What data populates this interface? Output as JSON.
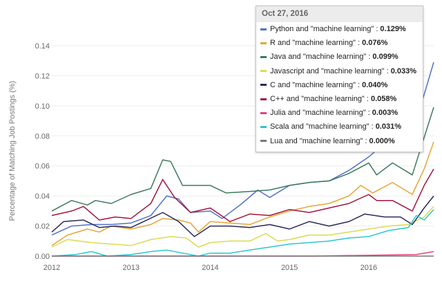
{
  "chart_data": {
    "type": "line",
    "title": "",
    "xlabel": "",
    "ylabel": "Percentage of Matching Job Postings (%)",
    "xlim": [
      2012,
      2016.82
    ],
    "ylim": [
      0,
      0.14
    ],
    "x_ticks": [
      "2012",
      "2013",
      "2014",
      "2015",
      "2016"
    ],
    "y_ticks": [
      "0.00",
      "0.02",
      "0.04",
      "0.06",
      "0.08",
      "0.10",
      "0.12",
      "0.14"
    ],
    "grid": true,
    "tooltip": {
      "date": "Oct 27, 2016",
      "legend_placement": "top-right"
    },
    "series": [
      {
        "name": "Python and \"machine learning\"",
        "value_label": "0.129%",
        "color": "#5271c9",
        "x": [
          2012,
          2012.25,
          2012.5,
          2012.75,
          2013,
          2013.25,
          2013.45,
          2013.6,
          2013.75,
          2014,
          2014.15,
          2014.4,
          2014.6,
          2014.75,
          2015,
          2015.25,
          2015.5,
          2015.75,
          2016,
          2016.2,
          2016.5,
          2016.82
        ],
        "y": [
          0.014,
          0.02,
          0.021,
          0.021,
          0.022,
          0.027,
          0.04,
          0.038,
          0.029,
          0.03,
          0.025,
          0.035,
          0.044,
          0.039,
          0.047,
          0.049,
          0.05,
          0.057,
          0.066,
          0.075,
          0.072,
          0.129
        ]
      },
      {
        "name": "R and \"machine learning\"",
        "value_label": "0.076%",
        "color": "#e6a535",
        "x": [
          2012,
          2012.2,
          2012.45,
          2012.6,
          2012.75,
          2013,
          2013.25,
          2013.4,
          2013.6,
          2013.75,
          2013.85,
          2014,
          2014.25,
          2014.5,
          2014.75,
          2015,
          2015.25,
          2015.5,
          2015.75,
          2015.9,
          2016.05,
          2016.3,
          2016.55,
          2016.7,
          2016.82
        ],
        "y": [
          0.007,
          0.014,
          0.018,
          0.016,
          0.02,
          0.018,
          0.021,
          0.025,
          0.024,
          0.022,
          0.016,
          0.023,
          0.022,
          0.021,
          0.026,
          0.03,
          0.033,
          0.035,
          0.04,
          0.047,
          0.042,
          0.049,
          0.041,
          0.058,
          0.076
        ]
      },
      {
        "name": "Java and \"machine learning\"",
        "value_label": "0.099%",
        "color": "#3d7a5c",
        "x": [
          2012,
          2012.25,
          2012.45,
          2012.55,
          2012.75,
          2013,
          2013.25,
          2013.4,
          2013.5,
          2013.65,
          2014,
          2014.2,
          2014.5,
          2014.75,
          2015,
          2015.25,
          2015.5,
          2015.75,
          2016,
          2016.1,
          2016.3,
          2016.55,
          2016.82
        ],
        "y": [
          0.03,
          0.037,
          0.034,
          0.037,
          0.035,
          0.041,
          0.045,
          0.064,
          0.063,
          0.047,
          0.047,
          0.042,
          0.043,
          0.044,
          0.047,
          0.049,
          0.05,
          0.055,
          0.062,
          0.054,
          0.062,
          0.054,
          0.099
        ]
      },
      {
        "name": "Javascript and \"machine learning\"",
        "value_label": "0.033%",
        "color": "#dada55",
        "x": [
          2012,
          2012.2,
          2012.5,
          2012.75,
          2013,
          2013.25,
          2013.5,
          2013.7,
          2013.85,
          2014,
          2014.25,
          2014.5,
          2014.7,
          2014.85,
          2015,
          2015.25,
          2015.5,
          2015.75,
          2016,
          2016.25,
          2016.5,
          2016.7,
          2016.82
        ],
        "y": [
          0.006,
          0.011,
          0.009,
          0.008,
          0.007,
          0.011,
          0.013,
          0.012,
          0.006,
          0.009,
          0.01,
          0.01,
          0.015,
          0.01,
          0.011,
          0.014,
          0.014,
          0.016,
          0.018,
          0.02,
          0.021,
          0.026,
          0.033
        ]
      },
      {
        "name": "C and \"machine learning\"",
        "value_label": "0.040%",
        "color": "#2c2a5a",
        "x": [
          2012,
          2012.15,
          2012.4,
          2012.6,
          2012.8,
          2013,
          2013.2,
          2013.4,
          2013.6,
          2013.8,
          2014,
          2014.25,
          2014.5,
          2014.75,
          2015,
          2015.25,
          2015.5,
          2015.75,
          2015.95,
          2016.2,
          2016.4,
          2016.55,
          2016.7,
          2016.82
        ],
        "y": [
          0.016,
          0.023,
          0.024,
          0.019,
          0.02,
          0.019,
          0.024,
          0.029,
          0.023,
          0.013,
          0.02,
          0.02,
          0.019,
          0.021,
          0.018,
          0.023,
          0.02,
          0.023,
          0.028,
          0.026,
          0.026,
          0.021,
          0.032,
          0.04
        ]
      },
      {
        "name": "C++ and \"machine learning\"",
        "value_label": "0.058%",
        "color": "#a3153f",
        "x": [
          2012,
          2012.25,
          2012.4,
          2012.6,
          2012.8,
          2013,
          2013.25,
          2013.4,
          2013.55,
          2013.75,
          2014,
          2014.25,
          2014.5,
          2014.75,
          2015,
          2015.25,
          2015.5,
          2015.75,
          2016,
          2016.1,
          2016.3,
          2016.55,
          2016.7,
          2016.82
        ],
        "y": [
          0.027,
          0.03,
          0.033,
          0.024,
          0.026,
          0.025,
          0.035,
          0.051,
          0.039,
          0.029,
          0.032,
          0.023,
          0.028,
          0.027,
          0.031,
          0.029,
          0.032,
          0.035,
          0.041,
          0.037,
          0.037,
          0.03,
          0.047,
          0.058
        ]
      },
      {
        "name": "Julia and \"machine learning\"",
        "value_label": "0.003%",
        "color": "#e0457a",
        "x": [
          2012,
          2015.3,
          2016.6,
          2016.82
        ],
        "y": [
          0.0,
          0.0,
          0.001,
          0.003
        ]
      },
      {
        "name": "Scala and \"machine learning\"",
        "value_label": "0.031%",
        "color": "#2dc5d0",
        "x": [
          2012,
          2012.3,
          2012.5,
          2012.7,
          2013,
          2013.25,
          2013.45,
          2013.65,
          2013.85,
          2014,
          2014.25,
          2014.5,
          2014.75,
          2015,
          2015.25,
          2015.5,
          2015.75,
          2016,
          2016.25,
          2016.5,
          2016.6,
          2016.7,
          2016.82
        ],
        "y": [
          0.0,
          0.001,
          0.003,
          0.0,
          0.001,
          0.003,
          0.004,
          0.002,
          0.0,
          0.002,
          0.002,
          0.004,
          0.006,
          0.008,
          0.009,
          0.01,
          0.012,
          0.013,
          0.017,
          0.019,
          0.027,
          0.024,
          0.031
        ]
      },
      {
        "name": "Lua and \"machine learning\"",
        "value_label": "0.000%",
        "color": "#777777",
        "x": [
          2012,
          2016.82
        ],
        "y": [
          0.0,
          0.0
        ]
      }
    ]
  }
}
